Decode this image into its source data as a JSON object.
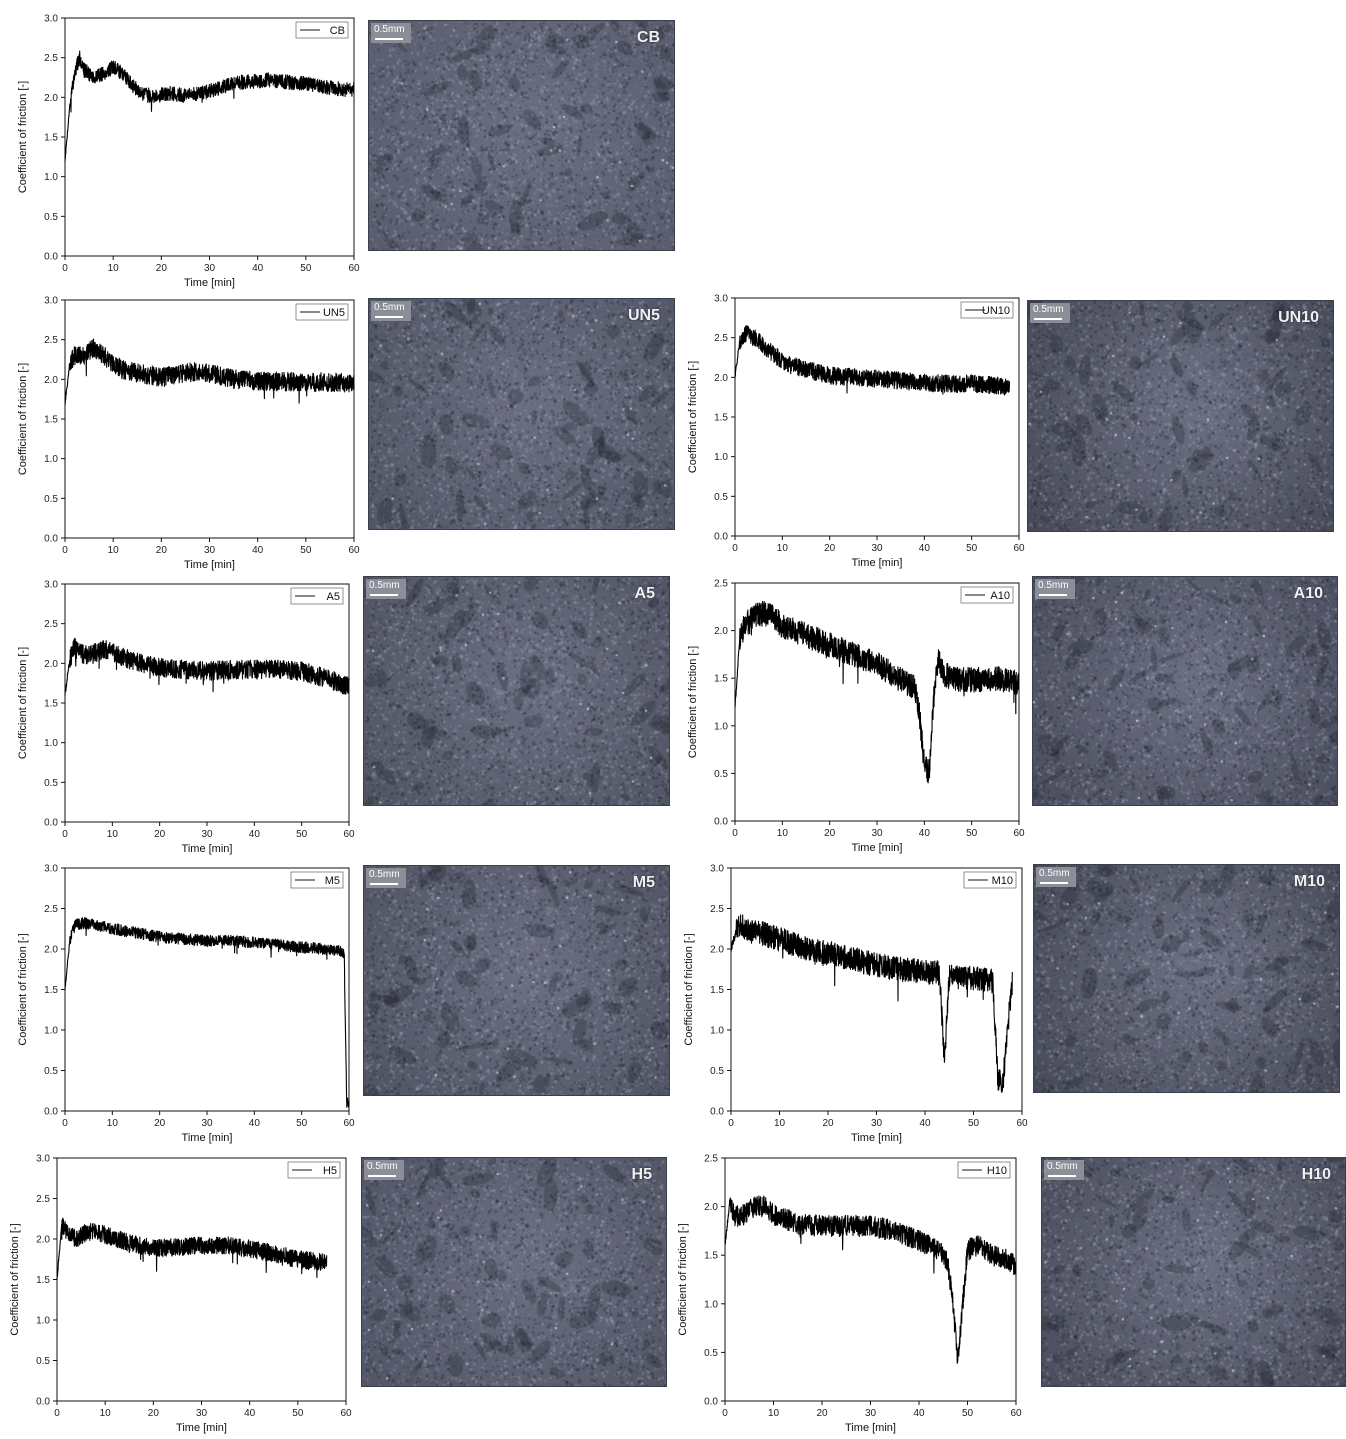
{
  "figure": {
    "scale_bar_label": "0.5mm"
  },
  "chart_data": [
    {
      "id": "CB",
      "type": "line",
      "xlabel": "Time [min]",
      "ylabel": "Coefficient of friction [-]",
      "xlim": [
        0,
        60
      ],
      "ylim": [
        0,
        3.0
      ],
      "xticks": [
        "0",
        "10",
        "20",
        "30",
        "40",
        "50",
        "60"
      ],
      "yticks": [
        "0.0",
        "0.5",
        "1.0",
        "1.5",
        "2.0",
        "2.5",
        "3.0"
      ],
      "series": [
        {
          "name": "CB",
          "color": "#000000",
          "x": [
            0,
            1,
            2,
            3,
            4,
            6,
            8,
            10,
            12,
            14,
            16,
            18,
            20,
            22,
            25,
            28,
            30,
            32,
            35,
            38,
            40,
            42,
            45,
            48,
            50,
            52,
            55,
            58,
            60
          ],
          "y": [
            1.2,
            1.9,
            2.3,
            2.5,
            2.35,
            2.25,
            2.3,
            2.38,
            2.3,
            2.15,
            2.05,
            2.02,
            2.03,
            2.05,
            2.02,
            2.05,
            2.08,
            2.12,
            2.18,
            2.2,
            2.2,
            2.22,
            2.2,
            2.18,
            2.18,
            2.15,
            2.12,
            2.1,
            2.1
          ],
          "noise": 0.09
        }
      ]
    },
    {
      "id": "UN5",
      "type": "line",
      "xlabel": "Time [min]",
      "ylabel": "Coefficient of friction [-]",
      "xlim": [
        0,
        60
      ],
      "ylim": [
        0,
        3.0
      ],
      "xticks": [
        "0",
        "10",
        "20",
        "30",
        "40",
        "50",
        "60"
      ],
      "yticks": [
        "0.0",
        "0.5",
        "1.0",
        "1.5",
        "2.0",
        "2.5",
        "3.0"
      ],
      "series": [
        {
          "name": "UN5",
          "color": "#000000",
          "x": [
            0,
            1,
            2,
            4,
            6,
            8,
            10,
            12,
            15,
            18,
            20,
            22,
            25,
            28,
            30,
            35,
            40,
            45,
            50,
            55,
            60
          ],
          "y": [
            1.7,
            2.2,
            2.3,
            2.3,
            2.4,
            2.3,
            2.2,
            2.12,
            2.08,
            2.05,
            2.02,
            2.05,
            2.08,
            2.1,
            2.08,
            2.0,
            1.98,
            1.97,
            1.97,
            1.96,
            1.95
          ],
          "noise": 0.12
        }
      ]
    },
    {
      "id": "UN10",
      "type": "line",
      "xlabel": "Time [min]",
      "ylabel": "Coefficient of friction [-]",
      "xlim": [
        0,
        60
      ],
      "ylim": [
        0,
        3.0
      ],
      "xticks": [
        "0",
        "10",
        "20",
        "30",
        "40",
        "50",
        "60"
      ],
      "yticks": [
        "0.0",
        "0.5",
        "1.0",
        "1.5",
        "2.0",
        "2.5",
        "3.0"
      ],
      "series": [
        {
          "name": "UN10",
          "color": "#000000",
          "x": [
            0,
            1,
            2,
            3,
            5,
            8,
            10,
            12,
            15,
            18,
            20,
            25,
            30,
            35,
            40,
            45,
            50,
            55,
            58
          ],
          "y": [
            2.0,
            2.45,
            2.55,
            2.55,
            2.45,
            2.3,
            2.2,
            2.15,
            2.1,
            2.05,
            2.02,
            2.0,
            1.98,
            1.96,
            1.93,
            1.92,
            1.92,
            1.9,
            1.88
          ],
          "noise": 0.11
        }
      ]
    },
    {
      "id": "A5",
      "type": "line",
      "xlabel": "Time [min]",
      "ylabel": "Coefficient of friction [-]",
      "xlim": [
        0,
        60
      ],
      "ylim": [
        0,
        3.0
      ],
      "xticks": [
        "0",
        "10",
        "20",
        "30",
        "40",
        "50",
        "60"
      ],
      "yticks": [
        "0.0",
        "0.5",
        "1.0",
        "1.5",
        "2.0",
        "2.5",
        "3.0"
      ],
      "series": [
        {
          "name": "A5",
          "color": "#000000",
          "x": [
            0,
            1,
            2,
            4,
            6,
            8,
            10,
            12,
            15,
            18,
            20,
            25,
            30,
            35,
            40,
            45,
            50,
            53,
            56,
            58,
            60
          ],
          "y": [
            1.6,
            2.05,
            2.2,
            2.1,
            2.12,
            2.18,
            2.15,
            2.08,
            2.02,
            1.98,
            1.95,
            1.92,
            1.9,
            1.92,
            1.92,
            1.92,
            1.9,
            1.85,
            1.8,
            1.75,
            1.7
          ],
          "noise": 0.12
        }
      ]
    },
    {
      "id": "A10",
      "type": "line",
      "xlabel": "Time [min]",
      "ylabel": "Coefficient of friction [-]",
      "xlim": [
        0,
        60
      ],
      "ylim": [
        0,
        2.5
      ],
      "xticks": [
        "0",
        "10",
        "20",
        "30",
        "40",
        "50",
        "60"
      ],
      "yticks": [
        "0.0",
        "0.5",
        "1.0",
        "1.5",
        "2.0",
        "2.5"
      ],
      "series": [
        {
          "name": "A10",
          "color": "#000000",
          "x": [
            0,
            1,
            2,
            4,
            6,
            8,
            10,
            15,
            20,
            25,
            30,
            33,
            36,
            38,
            39,
            40,
            41,
            42,
            43,
            44,
            46,
            50,
            55,
            60
          ],
          "y": [
            1.2,
            1.9,
            2.05,
            2.15,
            2.18,
            2.15,
            2.05,
            1.95,
            1.85,
            1.75,
            1.65,
            1.55,
            1.45,
            1.4,
            1.1,
            0.6,
            0.5,
            1.3,
            1.7,
            1.55,
            1.5,
            1.48,
            1.5,
            1.45
          ],
          "noise": 0.13
        }
      ]
    },
    {
      "id": "M5",
      "type": "line",
      "xlabel": "Time [min]",
      "ylabel": "Coefficient of friction [-]",
      "xlim": [
        0,
        60
      ],
      "ylim": [
        0,
        3.0
      ],
      "xticks": [
        "0",
        "10",
        "20",
        "30",
        "40",
        "50",
        "60"
      ],
      "yticks": [
        "0.0",
        "0.5",
        "1.0",
        "1.5",
        "2.0",
        "2.5",
        "3.0"
      ],
      "series": [
        {
          "name": "M5",
          "color": "#000000",
          "x": [
            0,
            1,
            2,
            4,
            6,
            8,
            10,
            15,
            20,
            25,
            30,
            35,
            40,
            45,
            50,
            55,
            58,
            59,
            59.5,
            60
          ],
          "y": [
            1.5,
            2.1,
            2.3,
            2.32,
            2.3,
            2.28,
            2.25,
            2.2,
            2.15,
            2.12,
            2.1,
            2.1,
            2.08,
            2.05,
            2.02,
            2.0,
            1.98,
            1.95,
            0.1,
            0.1
          ],
          "noise": 0.07
        }
      ]
    },
    {
      "id": "M10",
      "type": "line",
      "xlabel": "Time [min]",
      "ylabel": "Coefficient of friction [-]",
      "xlim": [
        0,
        60
      ],
      "ylim": [
        0,
        3.0
      ],
      "xticks": [
        "0",
        "10",
        "20",
        "30",
        "40",
        "50",
        "60"
      ],
      "yticks": [
        "0.0",
        "0.5",
        "1.0",
        "1.5",
        "2.0",
        "2.5",
        "3.0"
      ],
      "series": [
        {
          "name": "M10",
          "color": "#000000",
          "x": [
            0,
            1,
            2,
            4,
            6,
            10,
            15,
            20,
            25,
            30,
            35,
            40,
            43,
            44,
            45,
            48,
            52,
            54,
            55,
            56,
            57,
            58
          ],
          "y": [
            2.0,
            2.2,
            2.3,
            2.22,
            2.2,
            2.12,
            2.02,
            1.95,
            1.88,
            1.8,
            1.75,
            1.72,
            1.7,
            0.6,
            1.65,
            1.65,
            1.62,
            1.6,
            0.4,
            0.3,
            1.0,
            1.6
          ],
          "noise": 0.15
        }
      ]
    },
    {
      "id": "H5",
      "type": "line",
      "xlabel": "Time [min]",
      "ylabel": "Coefficient of friction [-]",
      "xlim": [
        0,
        60
      ],
      "ylim": [
        0,
        3.0
      ],
      "xticks": [
        "0",
        "10",
        "20",
        "30",
        "40",
        "50",
        "60"
      ],
      "yticks": [
        "0.0",
        "0.5",
        "1.0",
        "1.5",
        "2.0",
        "2.5",
        "3.0"
      ],
      "series": [
        {
          "name": "H5",
          "color": "#000000",
          "x": [
            0,
            1,
            2,
            4,
            6,
            8,
            10,
            15,
            20,
            25,
            30,
            35,
            40,
            45,
            50,
            54,
            56
          ],
          "y": [
            1.5,
            2.2,
            2.1,
            2.0,
            2.08,
            2.1,
            2.05,
            1.95,
            1.88,
            1.9,
            1.92,
            1.92,
            1.88,
            1.82,
            1.75,
            1.72,
            1.72
          ],
          "noise": 0.11
        }
      ]
    },
    {
      "id": "H10",
      "type": "line",
      "xlabel": "Time [min]",
      "ylabel": "Coefficient of friction [-]",
      "xlim": [
        0,
        60
      ],
      "ylim": [
        0,
        2.5
      ],
      "xticks": [
        "0",
        "10",
        "20",
        "30",
        "40",
        "50",
        "60"
      ],
      "yticks": [
        "0.0",
        "0.5",
        "1.0",
        "1.5",
        "2.0",
        "2.5"
      ],
      "series": [
        {
          "name": "H10",
          "color": "#000000",
          "x": [
            0,
            1,
            2,
            4,
            6,
            8,
            10,
            15,
            20,
            25,
            30,
            35,
            40,
            43,
            45,
            46,
            47,
            48,
            49,
            50,
            52,
            55,
            58,
            60
          ],
          "y": [
            1.6,
            2.05,
            1.9,
            1.92,
            2.0,
            2.0,
            1.92,
            1.82,
            1.8,
            1.8,
            1.8,
            1.75,
            1.65,
            1.58,
            1.5,
            1.4,
            1.0,
            0.4,
            1.0,
            1.55,
            1.6,
            1.5,
            1.45,
            1.4
          ],
          "noise": 0.11
        }
      ]
    }
  ],
  "micrographs": [
    {
      "id": "CB",
      "label": "CB",
      "tone": "#55596a"
    },
    {
      "id": "UN5",
      "label": "UN5",
      "tone": "#4d5160"
    },
    {
      "id": "UN10",
      "label": "UN10",
      "tone": "#3f424f"
    },
    {
      "id": "A5",
      "label": "A5",
      "tone": "#4a4e5c"
    },
    {
      "id": "A10",
      "label": "A10",
      "tone": "#434655"
    },
    {
      "id": "M5",
      "label": "M5",
      "tone": "#4a4e5d"
    },
    {
      "id": "M10",
      "label": "M10",
      "tone": "#3f424f"
    },
    {
      "id": "H5",
      "label": "H5",
      "tone": "#4c5060"
    },
    {
      "id": "H10",
      "label": "H10",
      "tone": "#434654"
    }
  ]
}
